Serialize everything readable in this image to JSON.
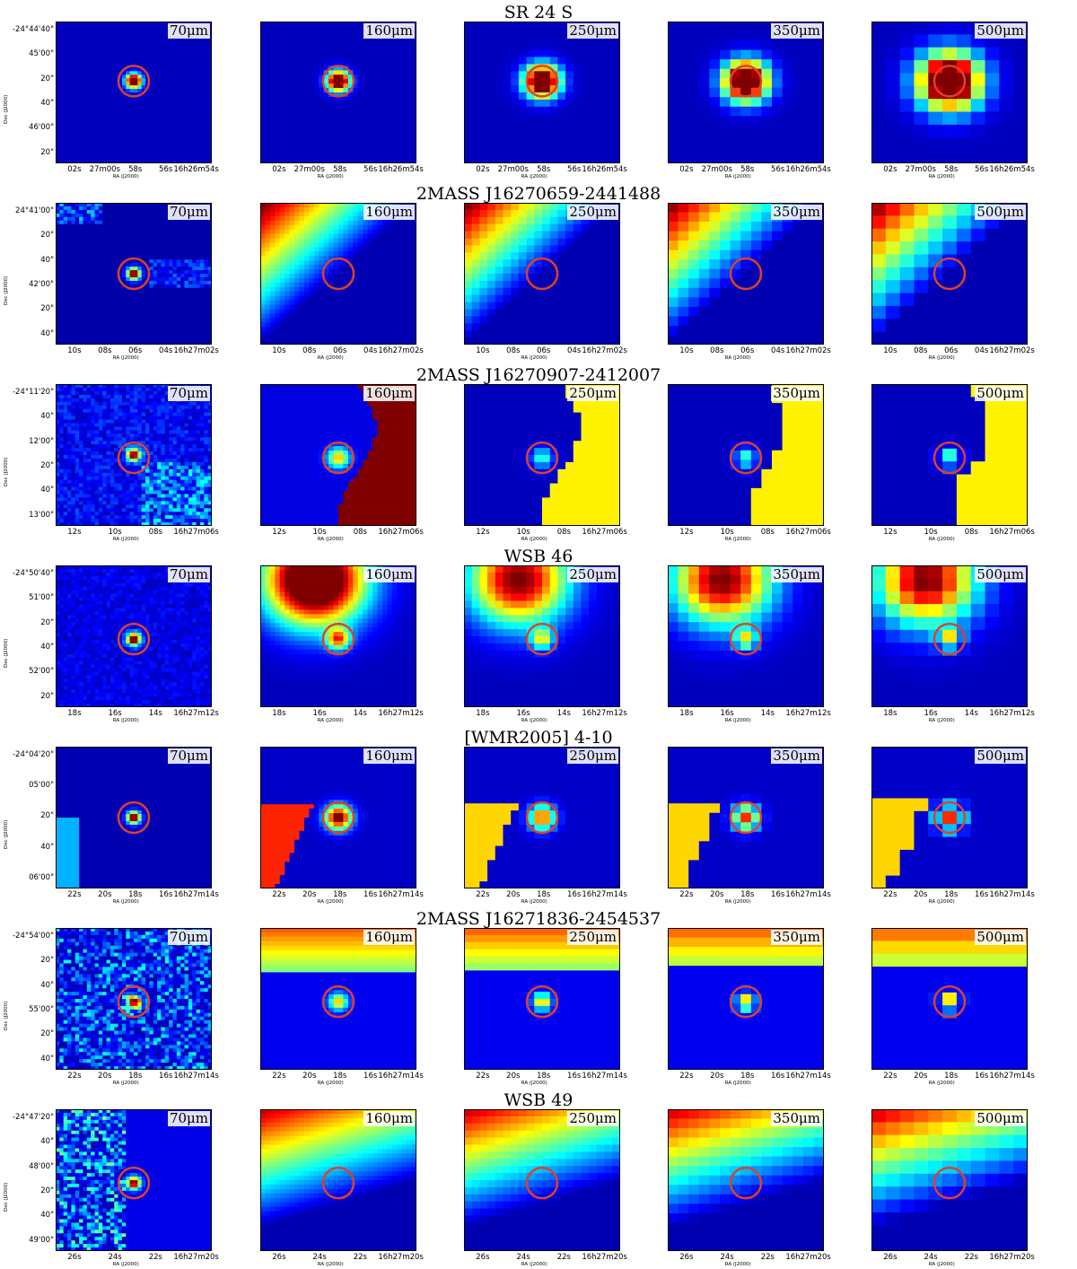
{
  "bands": [
    "70μm",
    "160μm",
    "250μm",
    "350μm",
    "500μm"
  ],
  "ra_axis_label": "RA (J2000)",
  "dec_axis_label": "Dec (J2000)",
  "colors": {
    "background": "#00008f",
    "circle": "#e0402a"
  },
  "rows": [
    {
      "title": "SR 24 S",
      "dec_ticks": [
        "-24°44'40\"",
        "45'00\"",
        "20\"",
        "40\"",
        "46'00\"",
        "20\""
      ],
      "ra_ticks": [
        "02s",
        "27m00s",
        "58s",
        "56s",
        "16h26m54s"
      ]
    },
    {
      "title": "2MASS J16270659-2441488",
      "dec_ticks": [
        "24°41'00\"",
        "20\"",
        "40\"",
        "42'00\"",
        "20\"",
        "40\""
      ],
      "ra_ticks": [
        "10s",
        "08s",
        "06s",
        "04s",
        "16h27m02s"
      ]
    },
    {
      "title": "2MASS J16270907-2412007",
      "dec_ticks": [
        "-24°11'20\"",
        "40\"",
        "12'00\"",
        "20\"",
        "40\"",
        "13'00\""
      ],
      "ra_ticks": [
        "12s",
        "10s",
        "08s",
        "16h27m06s"
      ]
    },
    {
      "title": "WSB 46",
      "dec_ticks": [
        "-24°50'40\"",
        "51'00\"",
        "20\"",
        "40\"",
        "52'00\"",
        "20\""
      ],
      "ra_ticks": [
        "18s",
        "16s",
        "14s",
        "16h27m12s"
      ]
    },
    {
      "title": "[WMR2005] 4-10",
      "dec_ticks": [
        "-24°04'20\"",
        "05'00\"",
        "20\"",
        "40\"",
        "06'00\""
      ],
      "ra_ticks": [
        "22s",
        "20s",
        "18s",
        "16s",
        "16h27m14s"
      ]
    },
    {
      "title": "2MASS J16271836-2454537",
      "dec_ticks": [
        "-24°54'00\"",
        "20\"",
        "40\"",
        "55'00\"",
        "20\"",
        "40\""
      ],
      "ra_ticks": [
        "22s",
        "20s",
        "18s",
        "16s",
        "16h27m14s"
      ]
    },
    {
      "title": "WSB 49",
      "dec_ticks": [
        "-24°47'20\"",
        "40\"",
        "48'00\"",
        "20\"",
        "40\"",
        "49'00\""
      ],
      "ra_ticks": [
        "26s",
        "24s",
        "22s",
        "16h27m20s"
      ]
    }
  ]
}
